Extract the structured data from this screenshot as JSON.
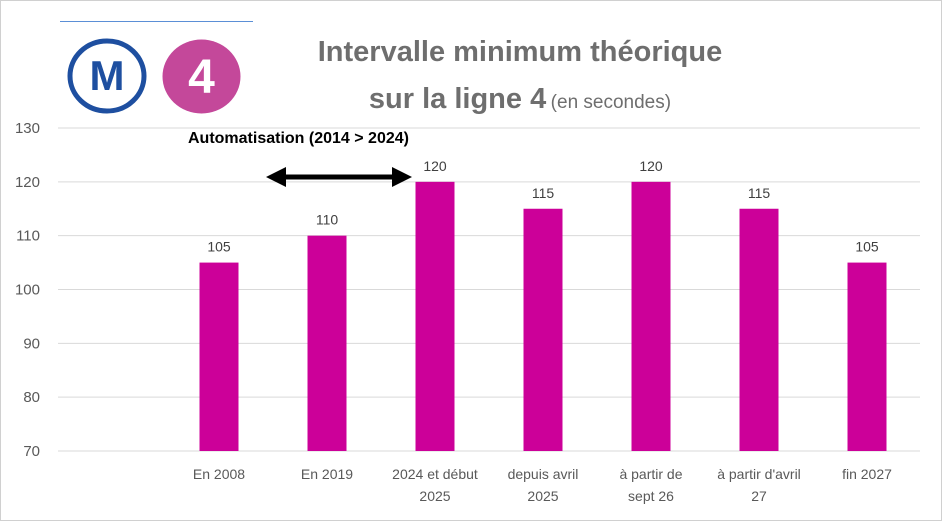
{
  "title": {
    "line1": "Intervalle minimum théorique",
    "line2_main": "sur la ligne 4",
    "line2_sub": "(en secondes)"
  },
  "logos": {
    "metro_icon": "metro-m-icon",
    "metro_letter": "M",
    "line_icon": "line-4-badge-icon",
    "line_number": "4"
  },
  "annotation": {
    "label": "Automatisation (2014 > 2024)",
    "arrow_icon": "double-arrow-icon"
  },
  "colors": {
    "bar": "#CC0099",
    "metro_blue": "#1E4FA0",
    "line4_badge": "#C4489A",
    "grid": "#d9d9d9"
  },
  "chart_data": {
    "type": "bar",
    "categories": [
      [
        "En 2008"
      ],
      [
        "En 2019"
      ],
      [
        "2024 et début",
        "2025"
      ],
      [
        "depuis avril",
        "2025"
      ],
      [
        "à partir de",
        "sept 26"
      ],
      [
        "à partir d'avril",
        "27"
      ],
      [
        "fin 2027"
      ]
    ],
    "values": [
      105,
      110,
      120,
      115,
      120,
      115,
      105
    ],
    "ylim": [
      70,
      130
    ],
    "yticks": [
      70,
      80,
      90,
      100,
      110,
      120,
      130
    ],
    "grid": true,
    "legend": "none"
  }
}
